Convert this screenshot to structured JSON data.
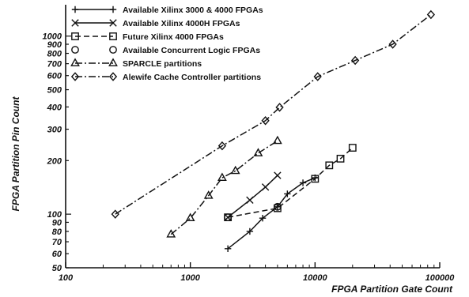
{
  "chart_data": {
    "type": "scatter",
    "title": "",
    "xlabel": "FPGA Partition Gate Count",
    "ylabel": "FPGA Partition Pin Count",
    "xscale": "log",
    "yscale": "log",
    "xlim": [
      100,
      100000
    ],
    "ylim": [
      50,
      1500
    ],
    "x_ticks": [
      100,
      1000,
      10000,
      100000
    ],
    "x_tick_labels": [
      "100",
      "1000",
      "10000",
      "100000"
    ],
    "y_ticks": [
      50,
      60,
      70,
      80,
      90,
      100,
      200,
      300,
      400,
      500,
      600,
      700,
      800,
      900,
      1000
    ],
    "y_tick_labels": [
      "50",
      "60",
      "70",
      "80",
      "90",
      "100",
      "200",
      "300",
      "400",
      "500",
      "600",
      "700",
      "800",
      "900",
      "1000"
    ],
    "grid": false,
    "legend_position": "top-left",
    "series": [
      {
        "name": "Available Xilinx 3000 & 4000 FPGAs",
        "marker": "plus",
        "line": "solid",
        "points": [
          [
            2000,
            64
          ],
          [
            3000,
            80
          ],
          [
            3800,
            95
          ],
          [
            5000,
            110
          ],
          [
            6000,
            130
          ],
          [
            8000,
            150
          ],
          [
            10000,
            160
          ]
        ]
      },
      {
        "name": "Available Xilinx 4000H FPGAs",
        "marker": "x",
        "line": "solid",
        "points": [
          [
            2000,
            96
          ],
          [
            3000,
            120
          ],
          [
            4000,
            142
          ],
          [
            5000,
            165
          ]
        ]
      },
      {
        "name": "Future Xilinx 4000 FPGAs",
        "marker": "square",
        "line": "dashed",
        "points": [
          [
            2000,
            96
          ],
          [
            5000,
            108
          ],
          [
            10000,
            158
          ],
          [
            13000,
            188
          ],
          [
            16000,
            205
          ],
          [
            20000,
            236
          ]
        ]
      },
      {
        "name": "Available Concurrent Logic FPGAs",
        "marker": "circle",
        "line": "none",
        "points": [
          [
            2000,
            96
          ],
          [
            5000,
            110
          ]
        ]
      },
      {
        "name": "SPARCLE partitions",
        "marker": "triangle",
        "line": "dashdot",
        "points": [
          [
            700,
            77
          ],
          [
            1000,
            95
          ],
          [
            1400,
            127
          ],
          [
            1800,
            160
          ],
          [
            2300,
            175
          ],
          [
            3500,
            220
          ],
          [
            5000,
            258
          ]
        ]
      },
      {
        "name": "Alewife Cache Controller partitions",
        "marker": "diamond",
        "line": "dashdot",
        "points": [
          [
            250,
            100
          ],
          [
            1800,
            242
          ],
          [
            4000,
            335
          ],
          [
            5200,
            398
          ],
          [
            10500,
            592
          ],
          [
            21000,
            730
          ],
          [
            42000,
            900
          ],
          [
            85000,
            1320
          ]
        ]
      }
    ]
  }
}
